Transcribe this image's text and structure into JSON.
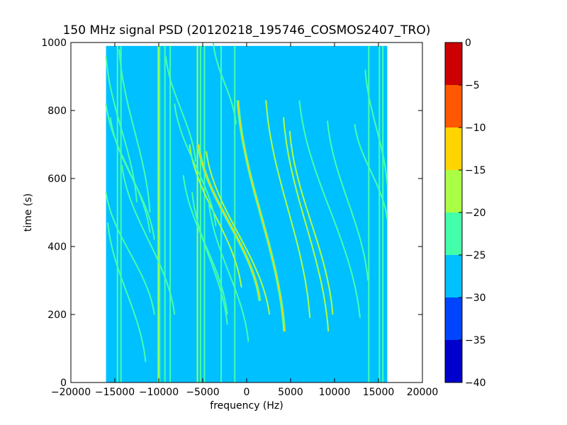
{
  "chart_data": {
    "type": "heatmap",
    "title": "150 MHz signal PSD (20120218_195746_COSMOS2407_TRO)",
    "xlabel": "frequency (Hz)",
    "ylabel": "time (s)",
    "xlim": [
      -20000,
      20000
    ],
    "ylim": [
      0,
      1000
    ],
    "xticks": [
      -20000,
      -15000,
      -10000,
      -5000,
      0,
      5000,
      10000,
      15000,
      20000
    ],
    "xtick_labels": [
      "−20000",
      "−15000",
      "−10000",
      "−5000",
      "0",
      "5000",
      "10000",
      "15000",
      "20000"
    ],
    "yticks": [
      0,
      200,
      400,
      600,
      800,
      1000
    ],
    "ytick_labels": [
      "0",
      "200",
      "400",
      "600",
      "800",
      "1000"
    ],
    "data_extent": {
      "x": [
        -16000,
        16000
      ],
      "y": [
        0,
        990
      ]
    },
    "background_level": -27.5,
    "colorbar": {
      "range": [
        -40,
        0
      ],
      "levels": [
        {
          "low": -40,
          "high": -35,
          "color": "#0000cc"
        },
        {
          "low": -35,
          "high": -30,
          "color": "#0044ff"
        },
        {
          "low": -30,
          "high": -25,
          "color": "#00c0ff"
        },
        {
          "low": -25,
          "high": -20,
          "color": "#44ffaa"
        },
        {
          "low": -20,
          "high": -15,
          "color": "#aaff44"
        },
        {
          "low": -15,
          "high": -10,
          "color": "#ffd400"
        },
        {
          "low": -10,
          "high": -5,
          "color": "#ff5800"
        },
        {
          "low": -5,
          "high": 0,
          "color": "#cc0000"
        }
      ],
      "ticks": [
        0,
        -5,
        -10,
        -15,
        -20,
        -25,
        -30,
        -35,
        -40
      ],
      "tick_labels": [
        "0",
        "−5",
        "−10",
        "−15",
        "−20",
        "−25",
        "−30",
        "−35",
        "−40"
      ]
    },
    "vertical_lines": [
      {
        "x": -14700,
        "t0": 0,
        "t1": 990,
        "level": -22
      },
      {
        "x": -14300,
        "t0": 0,
        "t1": 990,
        "level": -22
      },
      {
        "x": -10050,
        "t0": 0,
        "t1": 990,
        "level": -17
      },
      {
        "x": -9900,
        "t0": 0,
        "t1": 990,
        "level": -22
      },
      {
        "x": -9300,
        "t0": 0,
        "t1": 990,
        "level": -22
      },
      {
        "x": -8700,
        "t0": 0,
        "t1": 990,
        "level": -22
      },
      {
        "x": -5600,
        "t0": 0,
        "t1": 990,
        "level": -17
      },
      {
        "x": -5250,
        "t0": 0,
        "t1": 990,
        "level": -22
      },
      {
        "x": -4800,
        "t0": 0,
        "t1": 990,
        "level": -22
      },
      {
        "x": -2900,
        "t0": 0,
        "t1": 990,
        "level": -22
      },
      {
        "x": -1350,
        "t0": 0,
        "t1": 990,
        "level": -22
      },
      {
        "x": 13900,
        "t0": 0,
        "t1": 990,
        "level": -22
      },
      {
        "x": 15100,
        "t0": 0,
        "t1": 990,
        "level": -22
      },
      {
        "x": 15500,
        "t0": 0,
        "t1": 990,
        "level": -22
      }
    ],
    "doppler_tracks": [
      {
        "f_start": -1000,
        "f_end": 4300,
        "t_start": 830,
        "t_end": 150,
        "level": -12
      },
      {
        "f_start": -5500,
        "f_end": 1500,
        "t_start": 700,
        "t_end": 240,
        "level": -14
      },
      {
        "f_start": -4600,
        "f_end": 2600,
        "t_start": 680,
        "t_end": 200,
        "level": -16
      },
      {
        "f_start": -6500,
        "f_end": -600,
        "t_start": 700,
        "t_end": 280,
        "level": -17
      },
      {
        "f_start": 2200,
        "f_end": 7200,
        "t_start": 830,
        "t_end": 190,
        "level": -17
      },
      {
        "f_start": 4200,
        "f_end": 9300,
        "t_start": 780,
        "t_end": 150,
        "level": -17
      },
      {
        "f_start": 4900,
        "f_end": 9800,
        "t_start": 740,
        "t_end": 200,
        "level": -17
      },
      {
        "f_start": 6000,
        "f_end": 12900,
        "t_start": 830,
        "t_end": 190,
        "level": -22
      },
      {
        "f_start": 9200,
        "f_end": 13800,
        "t_start": 770,
        "t_end": 300,
        "level": -22
      },
      {
        "f_start": -16000,
        "f_end": -11000,
        "t_start": 820,
        "t_end": 440,
        "level": -22
      },
      {
        "f_start": -15500,
        "f_end": -10500,
        "t_start": 780,
        "t_end": 420,
        "level": -22
      },
      {
        "f_start": -16000,
        "f_end": -12500,
        "t_start": 960,
        "t_end": 530,
        "level": -22
      },
      {
        "f_start": -14500,
        "f_end": -11000,
        "t_start": 980,
        "t_end": 500,
        "level": -22
      },
      {
        "f_start": -16000,
        "f_end": -10500,
        "t_start": 560,
        "t_end": 200,
        "level": -22
      },
      {
        "f_start": -15800,
        "f_end": -11500,
        "t_start": 470,
        "t_end": 60,
        "level": -22
      },
      {
        "f_start": -14200,
        "f_end": -8200,
        "t_start": 640,
        "t_end": 200,
        "level": -22
      },
      {
        "f_start": -9200,
        "f_end": -5800,
        "t_start": 960,
        "t_end": 650,
        "level": -22
      },
      {
        "f_start": -8200,
        "f_end": -3500,
        "t_start": 820,
        "t_end": 460,
        "level": -22
      },
      {
        "f_start": -7200,
        "f_end": -2200,
        "t_start": 610,
        "t_end": 200,
        "level": -22
      },
      {
        "f_start": -6200,
        "f_end": -2200,
        "t_start": 560,
        "t_end": 170,
        "level": -22
      },
      {
        "f_start": -4300,
        "f_end": 200,
        "t_start": 530,
        "t_end": 120,
        "level": -22
      },
      {
        "f_start": -3800,
        "f_end": -1200,
        "t_start": 1000,
        "t_end": 760,
        "level": -22
      },
      {
        "f_start": 12300,
        "f_end": 16000,
        "t_start": 760,
        "t_end": 480,
        "level": -22
      },
      {
        "f_start": 13500,
        "f_end": 16000,
        "t_start": 920,
        "t_end": 580,
        "level": -22
      }
    ]
  }
}
